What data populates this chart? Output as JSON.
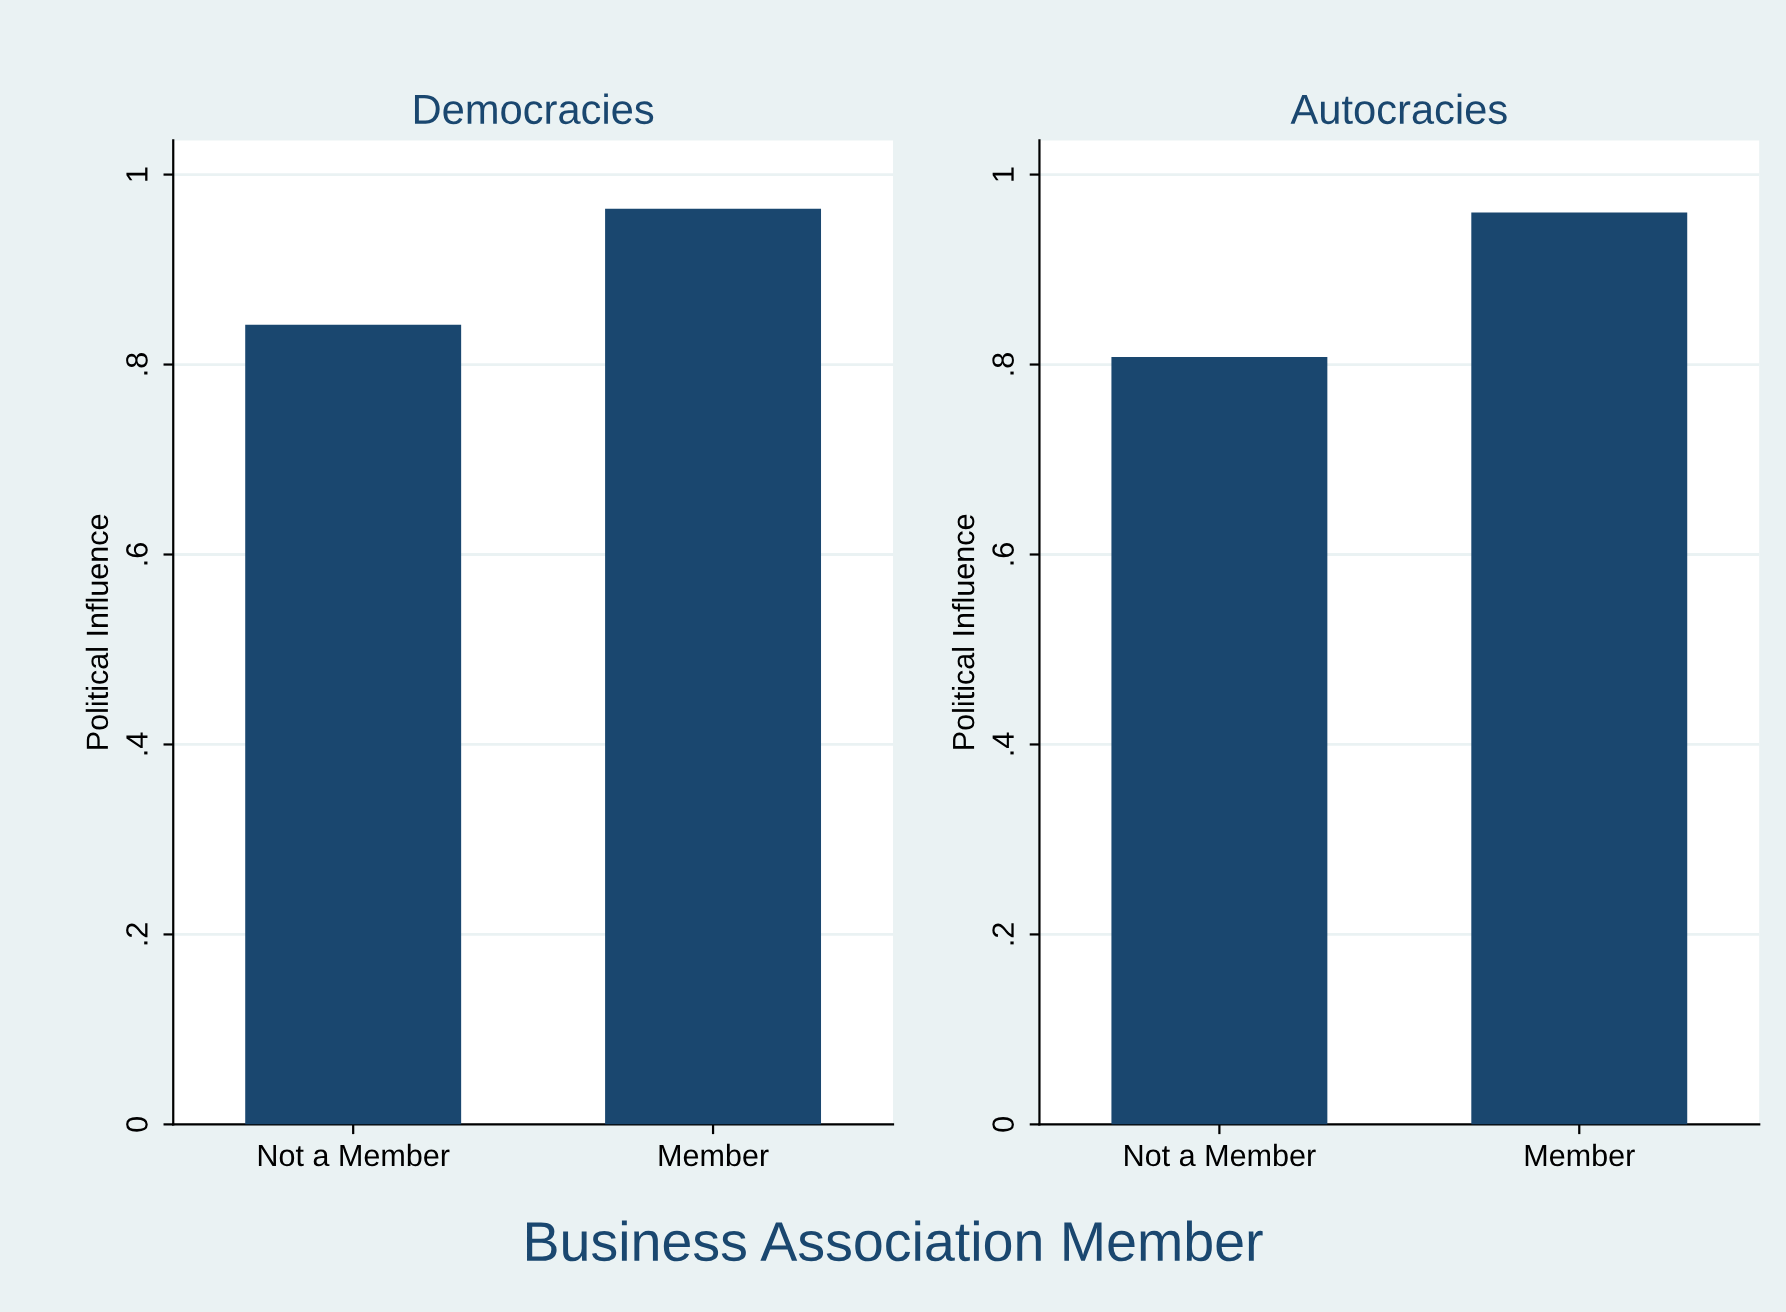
{
  "chart_data": [
    {
      "type": "bar",
      "title": "Democracies",
      "ylabel": "Political Influence",
      "categories": [
        "Not a Member",
        "Member"
      ],
      "values": [
        0.842,
        0.964
      ],
      "color": "#1a476f",
      "ylim": [
        0,
        1.036
      ],
      "yticks": [
        0,
        {
          "value": 0.2,
          "label": ".2"
        },
        {
          "value": 0.4,
          "label": ".4"
        },
        {
          "value": 0.6,
          "label": ".6"
        },
        {
          "value": 0.8,
          "label": ".8"
        },
        1
      ],
      "grid": "y",
      "annotations": [
        "Business Association Member"
      ]
    },
    {
      "type": "bar",
      "title": "Autocracies",
      "ylabel": "Political Influence",
      "categories": [
        "Not a Member",
        "Member"
      ],
      "values": [
        0.808,
        0.96
      ],
      "color": "#1a476f",
      "ylim": [
        0,
        1.036
      ],
      "yticks": [
        0,
        {
          "value": 0.2,
          "label": ".2"
        },
        {
          "value": 0.4,
          "label": ".4"
        },
        {
          "value": 0.6,
          "label": ".6"
        },
        {
          "value": 0.8,
          "label": ".8"
        },
        1
      ],
      "grid": "y"
    }
  ]
}
